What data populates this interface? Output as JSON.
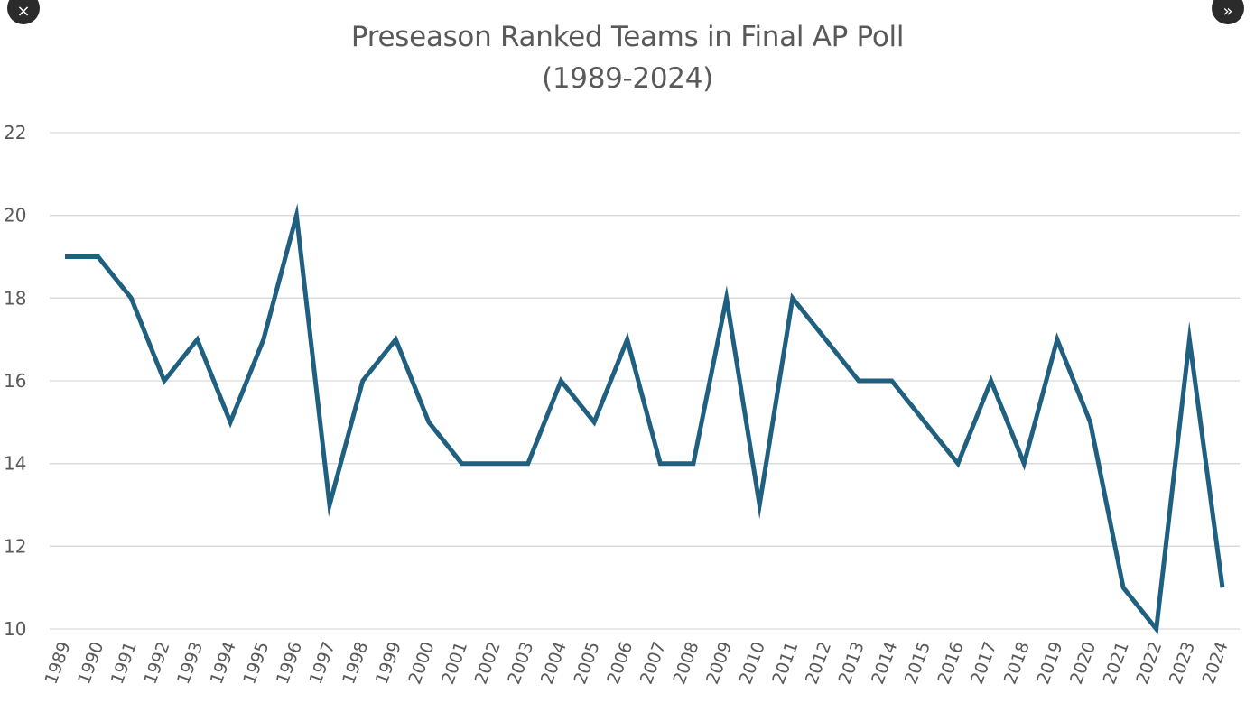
{
  "controls": {
    "close_glyph": "×",
    "next_glyph": "»"
  },
  "chart_data": {
    "type": "line",
    "title": "Preseason Ranked Teams in Final AP Poll",
    "subtitle": "(1989-2024)",
    "xlabel": "",
    "ylabel": "",
    "ylim": [
      10,
      22
    ],
    "yticks": [
      "10",
      "12",
      "14",
      "16",
      "18",
      "20",
      "22"
    ],
    "grid": true,
    "legend": "none",
    "line_color": "#1f5f7f",
    "categories": [
      "1989",
      "1990",
      "1991",
      "1992",
      "1993",
      "1994",
      "1995",
      "1996",
      "1997",
      "1998",
      "1999",
      "2000",
      "2001",
      "2002",
      "2003",
      "2004",
      "2005",
      "2006",
      "2007",
      "2008",
      "2009",
      "2010",
      "2011",
      "2012",
      "2013",
      "2014",
      "2015",
      "2016",
      "2017",
      "2018",
      "2019",
      "2020",
      "2021",
      "2022",
      "2023",
      "2024"
    ],
    "series": [
      {
        "values": [
          19,
          19,
          18,
          16,
          17,
          15,
          17,
          20,
          13,
          16,
          17,
          15,
          14,
          14,
          14,
          16,
          15,
          17,
          14,
          14,
          18,
          13,
          18,
          17,
          16,
          16,
          15,
          14,
          16,
          14,
          17,
          15,
          11,
          10,
          17,
          11
        ]
      }
    ]
  }
}
